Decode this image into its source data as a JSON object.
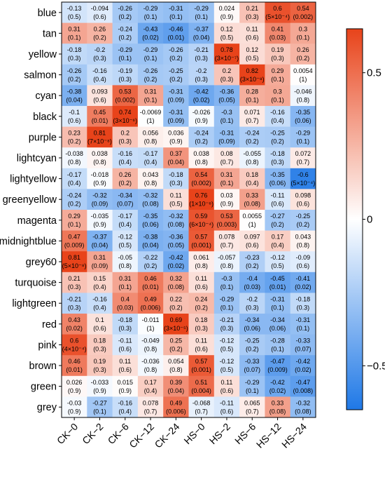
{
  "chart_data": {
    "type": "heatmap",
    "rows": [
      "blue",
      "tan",
      "yellow",
      "salmon",
      "cyan",
      "black",
      "purple",
      "lightcyan",
      "lightyellow",
      "greenyellow",
      "magenta",
      "midnightblue",
      "grey60",
      "turquoise",
      "lightgreen",
      "red",
      "pink",
      "brown",
      "green",
      "grey"
    ],
    "columns": [
      "CK-0",
      "CK-2",
      "CK-6",
      "CK-12",
      "CK-24",
      "HS-0",
      "HS-2",
      "HS-6",
      "HS-12",
      "HS-24"
    ],
    "values": [
      [
        -0.13,
        -0.094,
        -0.26,
        -0.29,
        -0.31,
        -0.29,
        0.024,
        0.21,
        0.6,
        0.54
      ],
      [
        0.31,
        0.26,
        -0.24,
        -0.43,
        -0.46,
        -0.37,
        0.12,
        0.11,
        0.41,
        0.3
      ],
      [
        -0.18,
        -0.2,
        -0.29,
        -0.29,
        -0.26,
        -0.21,
        0.78,
        0.12,
        0.19,
        0.26
      ],
      [
        -0.26,
        -0.16,
        -0.19,
        -0.26,
        -0.25,
        -0.2,
        0.2,
        0.82,
        0.29,
        0.0054
      ],
      [
        -0.38,
        0.093,
        0.53,
        0.31,
        -0.31,
        -0.42,
        -0.36,
        0.28,
        0.3,
        -0.046
      ],
      [
        -0.1,
        0.45,
        0.74,
        -0.0069,
        -0.31,
        -0.026,
        -0.3,
        0.071,
        -0.16,
        -0.35
      ],
      [
        0.23,
        0.81,
        0.2,
        0.056,
        0.036,
        -0.24,
        -0.31,
        -0.24,
        -0.25,
        -0.29
      ],
      [
        -0.038,
        0.038,
        -0.16,
        -0.17,
        0.37,
        0.038,
        0.08,
        -0.055,
        -0.18,
        0.072
      ],
      [
        -0.17,
        -0.018,
        0.26,
        0.043,
        -0.18,
        0.54,
        0.31,
        0.18,
        -0.35,
        -0.6
      ],
      [
        -0.24,
        -0.32,
        -0.34,
        -0.32,
        0.11,
        0.76,
        0.03,
        0.33,
        -0.11,
        0.098
      ],
      [
        0.29,
        -0.035,
        -0.17,
        -0.35,
        -0.32,
        0.59,
        0.53,
        0.0055,
        -0.27,
        -0.25
      ],
      [
        0.47,
        -0.37,
        -0.12,
        -0.38,
        -0.36,
        0.57,
        0.078,
        0.097,
        0.17,
        0.043
      ],
      [
        0.81,
        0.31,
        -0.05,
        -0.22,
        -0.42,
        0.061,
        -0.057,
        -0.23,
        -0.12,
        -0.09
      ],
      [
        0.21,
        0.15,
        0.31,
        0.46,
        0.32,
        0.11,
        -0.3,
        -0.4,
        -0.45,
        -0.41
      ],
      [
        -0.21,
        -0.16,
        0.4,
        0.49,
        0.22,
        0.24,
        -0.29,
        -0.2,
        -0.31,
        -0.18
      ],
      [
        0.43,
        0.1,
        -0.18,
        -0.011,
        0.69,
        0.18,
        -0.21,
        -0.34,
        -0.34,
        -0.31
      ],
      [
        0.6,
        0.18,
        -0.11,
        -0.049,
        0.25,
        0.11,
        -0.12,
        -0.25,
        -0.28,
        -0.33
      ],
      [
        0.46,
        0.19,
        0.11,
        -0.036,
        0.054,
        0.57,
        -0.12,
        -0.33,
        -0.47,
        -0.42
      ],
      [
        0.026,
        -0.033,
        0.015,
        0.17,
        0.39,
        0.51,
        0.11,
        -0.29,
        -0.42,
        -0.47
      ],
      [
        -0.03,
        -0.27,
        -0.16,
        0.078,
        0.49,
        -0.068,
        -0.11,
        0.065,
        0.33,
        -0.32
      ]
    ],
    "value_labels": [
      [
        "-0.13",
        "-0.094",
        "-0.26",
        "-0.29",
        "-0.31",
        "-0.29",
        "0.024",
        "0.21",
        "0.6",
        "0.54"
      ],
      [
        "0.31",
        "0.26",
        "-0.24",
        "-0.43",
        "-0.46",
        "-0.37",
        "0.12",
        "0.11",
        "0.41",
        "0.3"
      ],
      [
        "-0.18",
        "-0.2",
        "-0.29",
        "-0.29",
        "-0.26",
        "-0.21",
        "0.78",
        "0.12",
        "0.19",
        "0.26"
      ],
      [
        "-0.26",
        "-0.16",
        "-0.19",
        "-0.26",
        "-0.25",
        "-0.2",
        "0.2",
        "0.82",
        "0.29",
        "0.0054"
      ],
      [
        "-0.38",
        "0.093",
        "0.53",
        "0.31",
        "-0.31",
        "-0.42",
        "-0.36",
        "0.28",
        "0.3",
        "-0.046"
      ],
      [
        "-0.1",
        "0.45",
        "0.74",
        "-0.0069",
        "-0.31",
        "-0.026",
        "-0.3",
        "0.071",
        "-0.16",
        "-0.35"
      ],
      [
        "0.23",
        "0.81",
        "0.2",
        "0.056",
        "0.036",
        "-0.24",
        "-0.31",
        "-0.24",
        "-0.25",
        "-0.29"
      ],
      [
        "-0.038",
        "0.038",
        "-0.16",
        "-0.17",
        "0.37",
        "0.038",
        "0.08",
        "-0.055",
        "-0.18",
        "0.072"
      ],
      [
        "-0.17",
        "-0.018",
        "0.26",
        "0.043",
        "-0.18",
        "0.54",
        "0.31",
        "0.18",
        "-0.35",
        "-0.6"
      ],
      [
        "-0.24",
        "-0.32",
        "-0.34",
        "-0.32",
        "0.11",
        "0.76",
        "0.03",
        "0.33",
        "-0.11",
        "0.098"
      ],
      [
        "0.29",
        "-0.035",
        "-0.17",
        "-0.35",
        "-0.32",
        "0.59",
        "0.53",
        "0.0055",
        "-0.27",
        "-0.25"
      ],
      [
        "0.47",
        "-0.37",
        "-0.12",
        "-0.38",
        "-0.36",
        "0.57",
        "0.078",
        "0.097",
        "0.17",
        "0.043"
      ],
      [
        "0.81",
        "0.31",
        "-0.05",
        "-0.22",
        "-0.42",
        "0.061",
        "-0.057",
        "-0.23",
        "-0.12",
        "-0.09"
      ],
      [
        "0.21",
        "0.15",
        "0.31",
        "0.46",
        "0.32",
        "0.11",
        "-0.3",
        "-0.4",
        "-0.45",
        "-0.41"
      ],
      [
        "-0.21",
        "-0.16",
        "0.4",
        "0.49",
        "0.22",
        "0.24",
        "-0.29",
        "-0.2",
        "-0.31",
        "-0.18"
      ],
      [
        "0.43",
        "0.1",
        "-0.18",
        "-0.011",
        "0.69",
        "0.18",
        "-0.21",
        "-0.34",
        "-0.34",
        "-0.31"
      ],
      [
        "0.6",
        "0.18",
        "-0.11",
        "-0.049",
        "0.25",
        "0.11",
        "-0.12",
        "-0.25",
        "-0.28",
        "-0.33"
      ],
      [
        "0.46",
        "0.19",
        "0.11",
        "-0.036",
        "0.054",
        "0.57",
        "-0.12",
        "-0.33",
        "-0.47",
        "-0.42"
      ],
      [
        "0.026",
        "-0.033",
        "0.015",
        "0.17",
        "0.39",
        "0.51",
        "0.11",
        "-0.29",
        "-0.42",
        "-0.47"
      ],
      [
        "-0.03",
        "-0.27",
        "-0.16",
        "0.078",
        "0.49",
        "-0.068",
        "-0.11",
        "0.065",
        "0.33",
        "-0.32"
      ]
    ],
    "p_labels": [
      [
        "(0.5)",
        "(0.6)",
        "(0.2)",
        "(0.1)",
        "(0.1)",
        "(0.1)",
        "(0.9)",
        "(0.3)",
        "(5×10⁻⁴)",
        "(0.002)"
      ],
      [
        "(0.1)",
        "(0.2)",
        "(0.2)",
        "(0.02)",
        "(0.01)",
        "(0.04)",
        "(0.5)",
        "(0.6)",
        "(0.03)",
        "(0.1)"
      ],
      [
        "(0.3)",
        "(0.3)",
        "(0.1)",
        "(0.1)",
        "(0.2)",
        "(0.3)",
        "(3×10⁻⁷)",
        "(0.5)",
        "(0.3)",
        "(0.2)"
      ],
      [
        "(0.2)",
        "(0.4)",
        "(0.3)",
        "(0.2)",
        "(0.2)",
        "(0.3)",
        "(0.3)",
        "(3×10⁻⁸)",
        "(0.1)",
        "(1)"
      ],
      [
        "(0.04)",
        "(0.6)",
        "(0.002)",
        "(0.1)",
        "(0.09)",
        "(0.02)",
        "(0.05)",
        "(0.1)",
        "(0.1)",
        "(0.8)"
      ],
      [
        "(0.6)",
        "(0.01)",
        "(3×10⁻⁶)",
        "(1)",
        "(0.09)",
        "(0.9)",
        "(0.1)",
        "(0.7)",
        "(0.4)",
        "(0.06)"
      ],
      [
        "(0.2)",
        "(7×10⁻⁸)",
        "(0.3)",
        "(0.8)",
        "(0.9)",
        "(0.2)",
        "(0.09)",
        "(0.2)",
        "(0.2)",
        "(0.1)"
      ],
      [
        "(0.8)",
        "(0.8)",
        "(0.4)",
        "(0.4)",
        "(0.04)",
        "(0.8)",
        "(0.7)",
        "(0.8)",
        "(0.3)",
        "(0.7)"
      ],
      [
        "(0.4)",
        "(0.9)",
        "(0.2)",
        "(0.8)",
        "(0.3)",
        "(0.002)",
        "(0.1)",
        "(0.4)",
        "(0.06)",
        "(5×10⁻⁴)"
      ],
      [
        "(0.2)",
        "(0.09)",
        "(0.07)",
        "(0.08)",
        "(0.5)",
        "(1×10⁻⁶)",
        "(0.9)",
        "(0.08)",
        "(0.6)",
        "(0.6)"
      ],
      [
        "(0.1)",
        "(0.9)",
        "(0.4)",
        "(0.06)",
        "(0.08)",
        "(6×10⁻⁴)",
        "(0.003)",
        "(1)",
        "(0.2)",
        "(0.2)"
      ],
      [
        "(0.009)",
        "(0.04)",
        "(0.5)",
        "(0.04)",
        "(0.05)",
        "(0.001)",
        "(0.7)",
        "(0.6)",
        "(0.4)",
        "(0.8)"
      ],
      [
        "(5×10⁻⁸)",
        "(0.09)",
        "(0.8)",
        "(0.2)",
        "(0.02)",
        "(0.8)",
        "(0.8)",
        "(0.2)",
        "(0.5)",
        "(0.6)"
      ],
      [
        "(0.3)",
        "(0.4)",
        "(0.1)",
        "(0.01)",
        "(0.08)",
        "(0.6)",
        "(0.1)",
        "(0.03)",
        "(0.01)",
        "(0.02)"
      ],
      [
        "(0.3)",
        "(0.4)",
        "(0.03)",
        "(0.006)",
        "(0.2)",
        "(0.2)",
        "(0.1)",
        "(0.3)",
        "(0.1)",
        "(0.3)"
      ],
      [
        "(0.02)",
        "(0.6)",
        "(0.3)",
        "(1)",
        "(3×10⁻⁵)",
        "(0.3)",
        "(0.3)",
        "(0.06)",
        "(0.06)",
        "(0.1)"
      ],
      [
        "(4×10⁻⁴)",
        "(0.3)",
        "(0.6)",
        "(0.8)",
        "(0.2)",
        "(0.6)",
        "(0.5)",
        "(0.2)",
        "(0.1)",
        "(0.07)"
      ],
      [
        "(0.01)",
        "(0.3)",
        "(0.6)",
        "(0.8)",
        "(0.8)",
        "(0.001)",
        "(0.5)",
        "(0.07)",
        "(0.009)",
        "(0.02)"
      ],
      [
        "(0.9)",
        "(0.9)",
        "(0.9)",
        "(0.4)",
        "(0.04)",
        "(0.004)",
        "(0.6)",
        "(0.1)",
        "(0.02)",
        "(0.008)"
      ],
      [
        "(0.9)",
        "(0.1)",
        "(0.4)",
        "(0.7)",
        "(0.006)",
        "(0.7)",
        "(0.6)",
        "(0.7)",
        "(0.08)",
        "(0.08)"
      ]
    ],
    "colorbar": {
      "range": [
        -0.65,
        0.65
      ],
      "ticks": [
        "0.5",
        "0",
        "−0.5"
      ],
      "tick_values": [
        0.5,
        0,
        -0.5
      ]
    },
    "colors": {
      "negative": "#1f78e6",
      "zero": "#ffffff",
      "positive": "#e8431a"
    },
    "title": "",
    "xlabel": "",
    "ylabel": "",
    "grid": false,
    "legend": "right"
  }
}
